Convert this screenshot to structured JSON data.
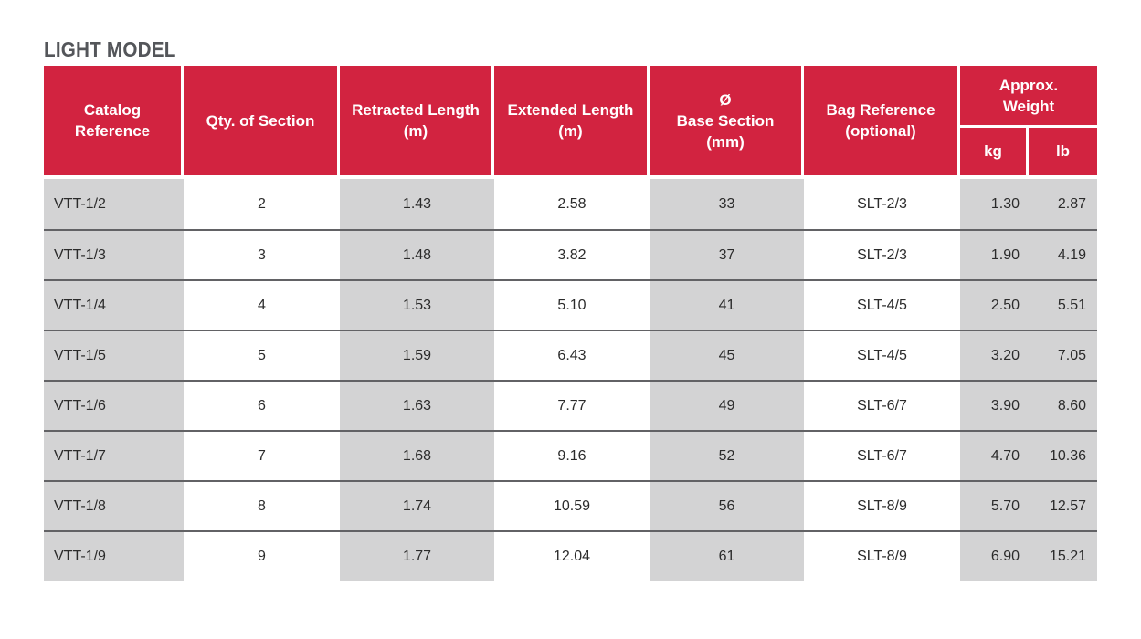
{
  "title": "LIGHT MODEL",
  "colors": {
    "accent_red": "#D22340",
    "cell_gray": "#D3D3D4",
    "row_divider_gray": "#626265",
    "title_gray": "#54565A",
    "body_text": "#2B2B2B",
    "header_text": "#FFFFFF"
  },
  "table": {
    "headers": [
      "Catalog\nReference",
      "Qty. of Section",
      "Retracted Length\n(m)",
      "Extended Length\n(m)",
      "Ø\nBase Section\n(mm)",
      "Bag Reference\n(optional)"
    ],
    "weight_group": {
      "label": "Approx.\nWeight",
      "sub_columns": [
        "kg",
        "lb"
      ]
    },
    "rows": [
      [
        "VTT-1/2",
        "2",
        "1.43",
        "2.58",
        "33",
        "SLT-2/3",
        "1.30",
        "2.87"
      ],
      [
        "VTT-1/3",
        "3",
        "1.48",
        "3.82",
        "37",
        "SLT-2/3",
        "1.90",
        "4.19"
      ],
      [
        "VTT-1/4",
        "4",
        "1.53",
        "5.10",
        "41",
        "SLT-4/5",
        "2.50",
        "5.51"
      ],
      [
        "VTT-1/5",
        "5",
        "1.59",
        "6.43",
        "45",
        "SLT-4/5",
        "3.20",
        "7.05"
      ],
      [
        "VTT-1/6",
        "6",
        "1.63",
        "7.77",
        "49",
        "SLT-6/7",
        "3.90",
        "8.60"
      ],
      [
        "VTT-1/7",
        "7",
        "1.68",
        "9.16",
        "52",
        "SLT-6/7",
        "4.70",
        "10.36"
      ],
      [
        "VTT-1/8",
        "8",
        "1.74",
        "10.59",
        "56",
        "SLT-8/9",
        "5.70",
        "12.57"
      ],
      [
        "VTT-1/9",
        "9",
        "1.77",
        "12.04",
        "61",
        "SLT-8/9",
        "6.90",
        "15.21"
      ]
    ]
  }
}
